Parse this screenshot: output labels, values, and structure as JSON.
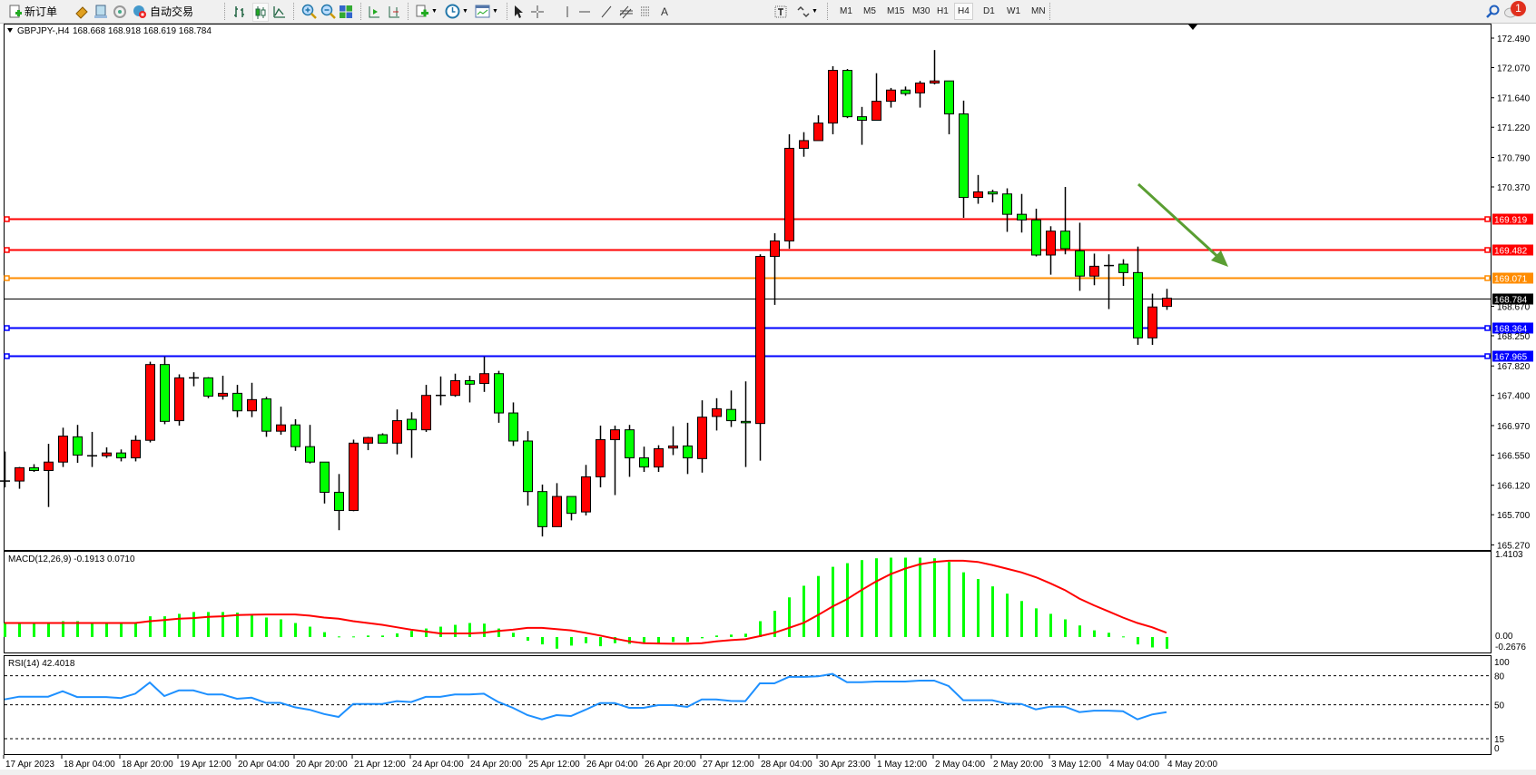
{
  "toolbar": {
    "new_order_label": "新订单",
    "auto_trading_label": "自动交易",
    "timeframes": [
      "M1",
      "M5",
      "M15",
      "M30",
      "H1",
      "H4",
      "D1",
      "W1",
      "MN"
    ],
    "active_timeframe": "H4",
    "notification_count": "1",
    "icons": [
      "new-order-icon",
      "market-watch-icon",
      "data-window-icon",
      "signal-icon",
      "auto-trading-icon",
      "bar-chart-icon",
      "candlestick-icon",
      "line-chart-icon",
      "zoom-in-icon",
      "zoom-out-icon",
      "tile-windows-icon",
      "auto-scroll-icon",
      "chart-shift-icon",
      "indicators-icon",
      "periods-icon",
      "templates-icon",
      "cursor-icon",
      "crosshair-icon",
      "vertical-line-icon",
      "horizontal-line-icon",
      "trendline-icon",
      "equidistant-channel-icon",
      "fibonacci-icon",
      "text-icon",
      "text-label-icon",
      "arrows-icon",
      "search-icon",
      "notification-icon"
    ]
  },
  "chart_header": {
    "symbol": "GBPJPY-,H4",
    "ohlc": "168.668 168.918 168.619 168.784"
  },
  "colors": {
    "bull_candle": "#ff0000",
    "bear_candle": "#00ff00",
    "macd_histogram": "#00ff00",
    "macd_signal": "#ff0000",
    "rsi_line": "#1e90ff",
    "arrow": "#5a9e32"
  },
  "levels": [
    {
      "price": "169.919",
      "color": "#ff0000"
    },
    {
      "price": "169.482",
      "color": "#ff0000"
    },
    {
      "price": "169.071",
      "color": "#ff8c00"
    },
    {
      "price": "168.784",
      "color": "#000000"
    },
    {
      "price": "168.364",
      "color": "#0000ff"
    },
    {
      "price": "167.965",
      "color": "#0000ff"
    }
  ],
  "price_axis": [
    "172.490",
    "172.070",
    "171.640",
    "171.220",
    "170.790",
    "170.370",
    "168.670",
    "168.250",
    "167.820",
    "167.400",
    "166.970",
    "166.550",
    "166.120",
    "165.700",
    "165.270"
  ],
  "macd": {
    "label": "MACD(12,26,9) -0.1913 0.0710",
    "axis": [
      "1.4103",
      "0.00",
      "-0.2676"
    ]
  },
  "rsi": {
    "label": "RSI(14) 42.4018",
    "axis": [
      "100",
      "80",
      "50",
      "15",
      "0"
    ],
    "levels": [
      80,
      50,
      15
    ]
  },
  "time_axis": [
    "17 Apr 2023",
    "18 Apr 04:00",
    "18 Apr 20:00",
    "19 Apr 12:00",
    "20 Apr 04:00",
    "20 Apr 20:00",
    "21 Apr 12:00",
    "24 Apr 04:00",
    "24 Apr 20:00",
    "25 Apr 12:00",
    "26 Apr 04:00",
    "26 Apr 20:00",
    "27 Apr 12:00",
    "28 Apr 04:00",
    "30 Apr 23:00",
    "1 May 12:00",
    "2 May 04:00",
    "2 May 20:00",
    "3 May 12:00",
    "4 May 04:00",
    "4 May 20:00"
  ],
  "chart_data": {
    "type": "candlestick",
    "symbol": "GBPJPY-,H4",
    "ylim": [
      165.27,
      172.49
    ],
    "candles_ohlc": [
      [
        166.18,
        166.6,
        166.09,
        166.18
      ],
      [
        166.18,
        166.38,
        166.07,
        166.37
      ],
      [
        166.37,
        166.42,
        166.31,
        166.33
      ],
      [
        166.33,
        166.71,
        165.81,
        166.45
      ],
      [
        166.45,
        166.94,
        166.38,
        166.82
      ],
      [
        166.81,
        166.98,
        166.44,
        166.55
      ],
      [
        166.54,
        166.88,
        166.38,
        166.54
      ],
      [
        166.54,
        166.66,
        166.51,
        166.58
      ],
      [
        166.58,
        166.63,
        166.46,
        166.51
      ],
      [
        166.51,
        166.83,
        166.46,
        166.76
      ],
      [
        166.76,
        167.88,
        166.73,
        167.84
      ],
      [
        167.84,
        167.95,
        166.99,
        167.03
      ],
      [
        167.04,
        167.7,
        166.97,
        167.65
      ],
      [
        167.65,
        167.73,
        167.53,
        167.65
      ],
      [
        167.65,
        167.66,
        167.36,
        167.39
      ],
      [
        167.39,
        167.68,
        167.34,
        167.43
      ],
      [
        167.43,
        167.55,
        167.09,
        167.18
      ],
      [
        167.18,
        167.58,
        167.09,
        167.34
      ],
      [
        167.35,
        167.38,
        166.81,
        166.89
      ],
      [
        166.89,
        167.24,
        166.84,
        166.98
      ],
      [
        166.98,
        167.06,
        166.61,
        166.67
      ],
      [
        166.67,
        166.98,
        166.43,
        166.45
      ],
      [
        166.45,
        166.45,
        165.86,
        166.02
      ],
      [
        166.02,
        166.28,
        165.48,
        165.76
      ],
      [
        165.76,
        166.77,
        165.75,
        166.72
      ],
      [
        166.72,
        166.81,
        166.62,
        166.8
      ],
      [
        166.84,
        166.86,
        166.72,
        166.72
      ],
      [
        166.72,
        167.2,
        166.56,
        167.04
      ],
      [
        167.06,
        167.16,
        166.51,
        166.91
      ],
      [
        166.91,
        167.55,
        166.88,
        167.4
      ],
      [
        167.4,
        167.67,
        167.26,
        167.4
      ],
      [
        167.4,
        167.71,
        167.38,
        167.61
      ],
      [
        167.61,
        167.68,
        167.3,
        167.56
      ],
      [
        167.57,
        167.95,
        167.45,
        167.71
      ],
      [
        167.71,
        167.75,
        167.01,
        167.15
      ],
      [
        167.15,
        167.3,
        166.68,
        166.75
      ],
      [
        166.75,
        166.89,
        165.83,
        166.03
      ],
      [
        166.03,
        166.13,
        165.39,
        165.53
      ],
      [
        165.53,
        166.15,
        165.53,
        165.96
      ],
      [
        165.96,
        165.96,
        165.62,
        165.72
      ],
      [
        165.74,
        166.41,
        165.69,
        166.24
      ],
      [
        166.24,
        166.97,
        166.09,
        166.77
      ],
      [
        166.77,
        166.97,
        165.98,
        166.91
      ],
      [
        166.91,
        166.98,
        166.24,
        166.51
      ],
      [
        166.51,
        166.67,
        166.31,
        166.38
      ],
      [
        166.38,
        166.69,
        166.31,
        166.64
      ],
      [
        166.65,
        166.96,
        166.55,
        166.68
      ],
      [
        166.68,
        167.01,
        166.28,
        166.51
      ],
      [
        166.5,
        167.33,
        166.3,
        167.09
      ],
      [
        167.1,
        167.36,
        166.9,
        167.21
      ],
      [
        167.2,
        167.47,
        166.95,
        167.04
      ],
      [
        167.03,
        167.6,
        166.38,
        167.01
      ],
      [
        167.0,
        169.41,
        166.47,
        169.38
      ],
      [
        169.38,
        169.71,
        168.69,
        169.6
      ],
      [
        169.6,
        171.12,
        169.49,
        170.92
      ],
      [
        170.92,
        171.15,
        170.8,
        171.03
      ],
      [
        171.03,
        171.39,
        171.03,
        171.28
      ],
      [
        171.28,
        172.09,
        171.12,
        172.03
      ],
      [
        172.03,
        172.05,
        171.35,
        171.37
      ],
      [
        171.37,
        171.51,
        170.97,
        171.32
      ],
      [
        171.32,
        171.99,
        171.32,
        171.59
      ],
      [
        171.59,
        171.78,
        171.5,
        171.75
      ],
      [
        171.75,
        171.8,
        171.67,
        171.7
      ],
      [
        171.71,
        171.88,
        171.5,
        171.85
      ],
      [
        171.85,
        172.32,
        171.83,
        171.88
      ],
      [
        171.88,
        171.88,
        171.12,
        171.41
      ],
      [
        171.41,
        171.6,
        169.93,
        170.22
      ],
      [
        170.22,
        170.54,
        170.13,
        170.3
      ],
      [
        170.3,
        170.33,
        170.15,
        170.27
      ],
      [
        170.27,
        170.35,
        169.73,
        169.98
      ],
      [
        169.98,
        170.27,
        169.72,
        169.9
      ],
      [
        169.9,
        170.06,
        169.38,
        169.4
      ],
      [
        169.4,
        169.81,
        169.12,
        169.74
      ],
      [
        169.74,
        170.37,
        169.41,
        169.49
      ],
      [
        169.46,
        169.86,
        168.89,
        169.1
      ],
      [
        169.1,
        169.42,
        168.97,
        169.24
      ],
      [
        169.25,
        169.41,
        168.63,
        169.25
      ],
      [
        169.27,
        169.34,
        168.96,
        169.15
      ],
      [
        169.15,
        169.52,
        168.12,
        168.22
      ],
      [
        168.22,
        168.85,
        168.12,
        168.66
      ],
      [
        168.668,
        168.918,
        168.619,
        168.784
      ]
    ],
    "macd_histogram": [
      0.23,
      0.23,
      0.23,
      0.23,
      0.26,
      0.26,
      0.23,
      0.23,
      0.23,
      0.23,
      0.34,
      0.34,
      0.38,
      0.41,
      0.41,
      0.41,
      0.4,
      0.36,
      0.32,
      0.29,
      0.23,
      0.17,
      0.08,
      0.01,
      0.01,
      0.025,
      0.025,
      0.06,
      0.1,
      0.14,
      0.17,
      0.2,
      0.23,
      0.22,
      0.14,
      0.07,
      -0.06,
      -0.12,
      -0.19,
      -0.14,
      -0.1,
      -0.15,
      -0.1,
      -0.11,
      -0.1,
      -0.1,
      -0.08,
      -0.08,
      -0.02,
      0.025,
      0.04,
      0.055,
      0.26,
      0.43,
      0.65,
      0.84,
      1.0,
      1.15,
      1.21,
      1.26,
      1.29,
      1.3,
      1.3,
      1.3,
      1.29,
      1.23,
      1.06,
      0.95,
      0.83,
      0.71,
      0.59,
      0.47,
      0.38,
      0.29,
      0.19,
      0.11,
      0.07,
      0.01,
      -0.12,
      -0.17,
      -0.1913
    ],
    "macd_signal": [
      0.23,
      0.23,
      0.23,
      0.23,
      0.23,
      0.23,
      0.23,
      0.23,
      0.23,
      0.23,
      0.26,
      0.28,
      0.3,
      0.31,
      0.33,
      0.34,
      0.36,
      0.365,
      0.37,
      0.37,
      0.37,
      0.35,
      0.32,
      0.3,
      0.26,
      0.23,
      0.2,
      0.16,
      0.12,
      0.09,
      0.06,
      0.06,
      0.06,
      0.07,
      0.1,
      0.12,
      0.15,
      0.15,
      0.13,
      0.11,
      0.07,
      0.025,
      -0.025,
      -0.07,
      -0.1,
      -0.105,
      -0.11,
      -0.11,
      -0.1,
      -0.07,
      -0.05,
      -0.035,
      0.015,
      0.07,
      0.15,
      0.23,
      0.36,
      0.5,
      0.62,
      0.77,
      0.91,
      1.03,
      1.12,
      1.19,
      1.23,
      1.25,
      1.25,
      1.23,
      1.18,
      1.12,
      1.06,
      0.98,
      0.88,
      0.77,
      0.63,
      0.52,
      0.42,
      0.32,
      0.23,
      0.16,
      0.071
    ],
    "macd_ylim": [
      -0.2676,
      1.4103
    ],
    "rsi": [
      55.6,
      58.4,
      58.4,
      58.4,
      64,
      58,
      58,
      58,
      57,
      61.5,
      73,
      59,
      64.9,
      64.9,
      60.6,
      60.6,
      56.2,
      57.4,
      52,
      52,
      47.4,
      44.9,
      40.5,
      37.5,
      50.9,
      50.9,
      50.9,
      53.8,
      52.9,
      58.2,
      58.2,
      60.6,
      60.6,
      61.5,
      52.9,
      46.9,
      39.4,
      35,
      39.4,
      38.4,
      44.9,
      51.8,
      51.8,
      46.9,
      46.9,
      49.7,
      49.7,
      47.8,
      55.6,
      55.6,
      54,
      53.8,
      72.2,
      72.2,
      78.8,
      78.8,
      79.4,
      81.9,
      73.4,
      73.4,
      74,
      74,
      74,
      75,
      75,
      69.4,
      54.7,
      54.7,
      54.7,
      51.2,
      50.9,
      45.3,
      48.1,
      48.1,
      42.5,
      44,
      44,
      43.4,
      35,
      40,
      42.4
    ],
    "rsi_ylim": [
      0,
      100
    ],
    "annotation": "down-arrow"
  }
}
